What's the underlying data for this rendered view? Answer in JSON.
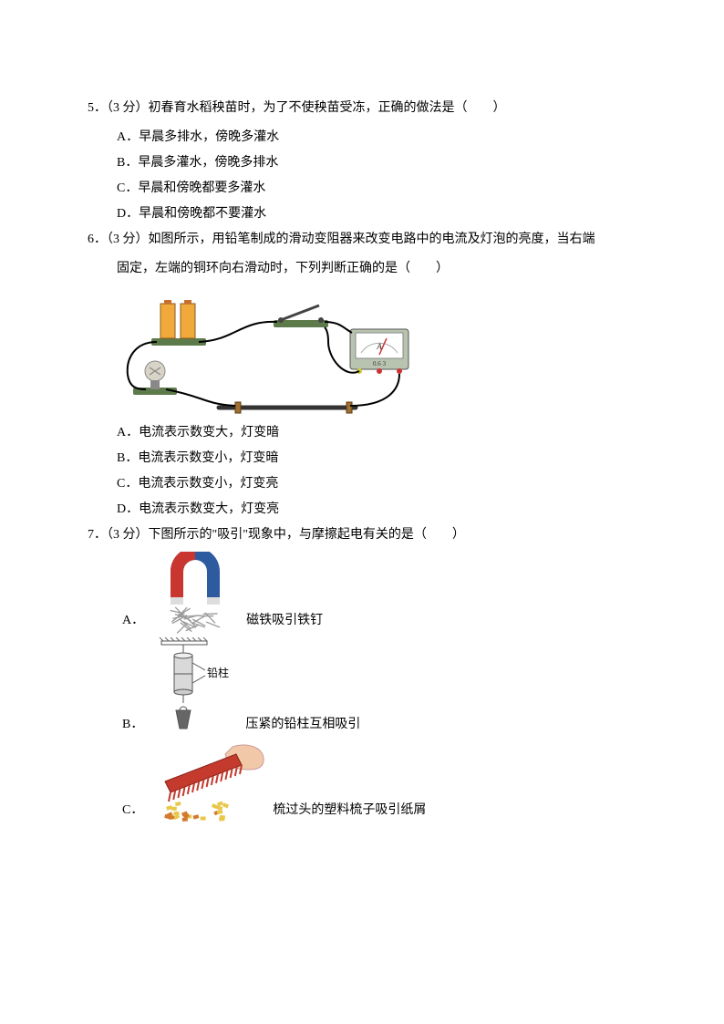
{
  "q5": {
    "num": "5．（3 分）",
    "stem": "初春育水稻秧苗时，为了不使秧苗受冻，正确的做法是（　　）",
    "opts": {
      "A": "A．早晨多排水，傍晚多灌水",
      "B": "B．早晨多灌水，傍晚多排水",
      "C": "C．早晨和傍晚都要多灌水",
      "D": "D．早晨和傍晚都不要灌水"
    }
  },
  "q6": {
    "num": "6．（3 分）",
    "stem1": "如图所示，用铅笔制成的滑动变阻器来改变电路中的电流及灯泡的亮度，当右端",
    "stem2": "固定，左端的铜环向右滑动时，下列判断正确的是（　　）",
    "opts": {
      "A": "A．电流表示数变大，灯变暗",
      "B": "B．电流表示数变小，灯变暗",
      "C": "C．电流表示数变小，灯变亮",
      "D": "D．电流表示数变大，灯变亮"
    },
    "figure": {
      "battery_color": "#f2a93c",
      "battery_top": "#c96f2e",
      "switch_color": "#5d7a4a",
      "wire_color": "#000000",
      "ammeter_body": "#b8c4b0",
      "ammeter_face": "#ffffff",
      "ammeter_scale": "0.6    3",
      "ammeter_letter": "A",
      "pencil_color": "#333333",
      "bulb_color": "#d9d4c8",
      "base_color": "#5d7a4a"
    }
  },
  "q7": {
    "num": "7．（3 分）",
    "stem": "下图所示的\"吸引\"现象中，与摩擦起电有关的是（　　）",
    "A": {
      "label": "A．",
      "caption": "磁铁吸引铁钉",
      "magnet_red": "#c8362f",
      "magnet_blue": "#2e5aa0",
      "nails": "#9a9a9a"
    },
    "B": {
      "label": "B．",
      "caption": "压紧的铅柱互相吸引",
      "annot": "铅柱",
      "metal": "#d9d9d9",
      "stroke": "#555555",
      "hatch": "#666666"
    },
    "C": {
      "label": "C．",
      "caption": "梳过头的塑料梳子吸引纸屑",
      "comb": "#c43b2e",
      "hand": "#f2c9a8",
      "paper1": "#e8c84a",
      "paper2": "#d47a2f"
    }
  }
}
